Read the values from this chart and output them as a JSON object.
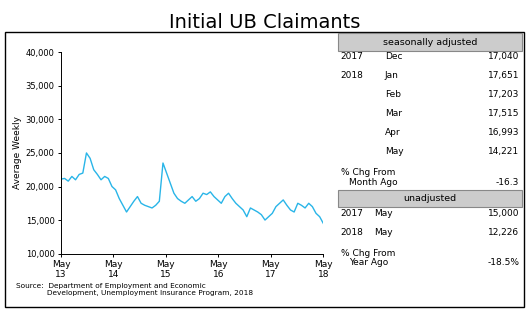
{
  "title": "Initial UB Claimants",
  "ylabel": "Average Weekly",
  "ylim": [
    10000,
    40000
  ],
  "yticks": [
    10000,
    15000,
    20000,
    25000,
    30000,
    35000,
    40000
  ],
  "ytick_labels": [
    "10,000",
    "15,000",
    "20,000",
    "25,000",
    "30,000",
    "35,000",
    "40,000"
  ],
  "xtick_labels": [
    "May\n13",
    "May\n14",
    "May\n15",
    "May\n16",
    "May\n17",
    "May\n18"
  ],
  "line_color": "#29b5e8",
  "line_width": 1.0,
  "background_color": "#ffffff",
  "source_text": "Source:  Department of Employment and Economic\n             Development, Unemployment Insurance Program, 2018",
  "seasonally_adjusted_label": "seasonally adjusted",
  "sa_data": [
    [
      "2017",
      "Dec",
      "17,040"
    ],
    [
      "2018",
      "Jan",
      "17,651"
    ],
    [
      "",
      "Feb",
      "17,203"
    ],
    [
      "",
      "Mar",
      "17,515"
    ],
    [
      "",
      "Apr",
      "16,993"
    ],
    [
      "",
      "May",
      "14,221"
    ]
  ],
  "pct_chg_month_line1": "% Chg From",
  "pct_chg_month_line2": "Month Ago",
  "pct_chg_month_val": "-16.3",
  "unadjusted_label": "unadjusted",
  "ua_data": [
    [
      "2017",
      "May",
      "15,000"
    ],
    [
      "2018",
      "May",
      "12,226"
    ]
  ],
  "pct_chg_year_line1": "% Chg From",
  "pct_chg_year_line2": "Year Ago",
  "pct_chg_year_val": "-18.5%",
  "line_data": [
    21100,
    21200,
    20800,
    21500,
    21000,
    21800,
    22000,
    25000,
    24200,
    22500,
    21800,
    21000,
    21500,
    21200,
    20000,
    19500,
    18200,
    17200,
    16200,
    17000,
    17800,
    18500,
    17500,
    17200,
    17000,
    16800,
    17200,
    17800,
    23500,
    22000,
    20500,
    19000,
    18200,
    17800,
    17500,
    18000,
    18500,
    17800,
    18200,
    19000,
    18800,
    19200,
    18500,
    18000,
    17500,
    18500,
    19000,
    18200,
    17500,
    17000,
    16500,
    15500,
    16800,
    16500,
    16200,
    15800,
    15000,
    15500,
    16000,
    17000,
    17500,
    18000,
    17200,
    16500,
    16200,
    17500,
    17200,
    16800,
    17500,
    17000,
    16000,
    15500,
    14500
  ]
}
